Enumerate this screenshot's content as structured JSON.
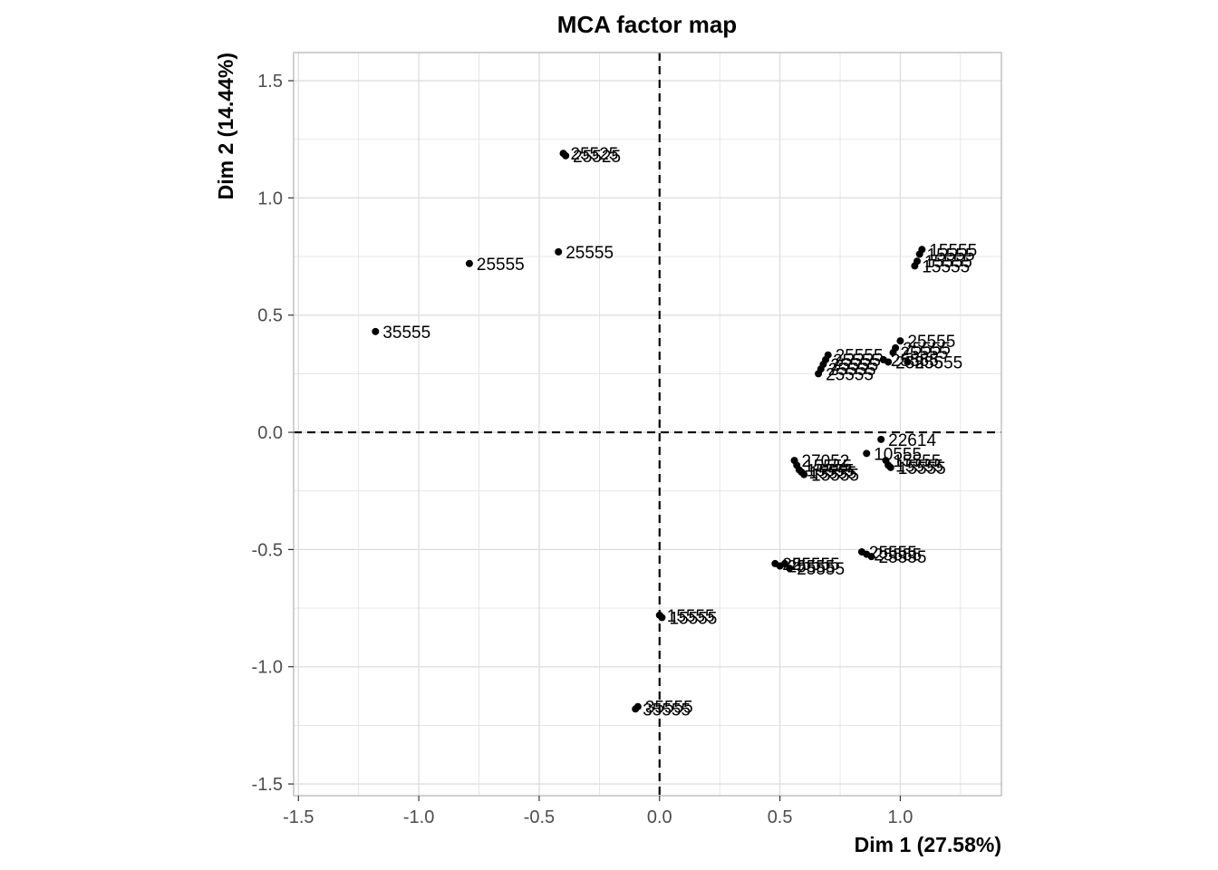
{
  "chart_data": {
    "type": "scatter",
    "title": "MCA factor map",
    "xlabel": "Dim 1 (27.58%)",
    "ylabel": "Dim 2 (14.44%)",
    "xlim": [
      -1.52,
      1.42
    ],
    "ylim": [
      -1.55,
      1.62
    ],
    "x_ticks": [
      -1.5,
      -1.0,
      -0.5,
      0.0,
      0.5,
      1.0
    ],
    "x_tick_labels": [
      "-1.5",
      "-1.0",
      "-0.5",
      "0.0",
      "0.5",
      "1.0"
    ],
    "y_ticks": [
      -1.5,
      -1.0,
      -0.5,
      0.0,
      0.5,
      1.0,
      1.5
    ],
    "y_tick_labels": [
      "-1.5",
      "-1.0",
      "-0.5",
      "0.0",
      "0.5",
      "1.0",
      "1.5"
    ],
    "grid": true,
    "reference_lines": {
      "x": 0,
      "y": 0,
      "style": "dashed"
    },
    "colors": {
      "points": "#000000",
      "grid": "#dddddd",
      "panel_border": "#bdbdbd",
      "tick_text": "#4d4d4d"
    },
    "points": [
      {
        "x": -1.18,
        "y": 0.43,
        "label": "35555"
      },
      {
        "x": -0.79,
        "y": 0.72,
        "label": "25555"
      },
      {
        "x": -0.42,
        "y": 0.77,
        "label": "25555"
      },
      {
        "x": -0.39,
        "y": 1.18,
        "label": "25525"
      },
      {
        "x": -0.4,
        "y": 1.19,
        "label": "25525"
      },
      {
        "x": -0.09,
        "y": -1.17,
        "label": "35555"
      },
      {
        "x": -0.1,
        "y": -1.18,
        "label": "35555"
      },
      {
        "x": 0.0,
        "y": -0.78,
        "label": "15555"
      },
      {
        "x": 0.01,
        "y": -0.79,
        "label": "15555"
      },
      {
        "x": 0.48,
        "y": -0.56,
        "label": "25555"
      },
      {
        "x": 0.5,
        "y": -0.57,
        "label": "25555"
      },
      {
        "x": 0.52,
        "y": -0.56,
        "label": "25555"
      },
      {
        "x": 0.54,
        "y": -0.58,
        "label": "25555"
      },
      {
        "x": 0.56,
        "y": -0.12,
        "label": "27052"
      },
      {
        "x": 0.57,
        "y": -0.14,
        "label": "15555"
      },
      {
        "x": 0.58,
        "y": -0.16,
        "label": "15555"
      },
      {
        "x": 0.59,
        "y": -0.17,
        "label": "15555"
      },
      {
        "x": 0.6,
        "y": -0.18,
        "label": "15555"
      },
      {
        "x": 0.66,
        "y": 0.25,
        "label": "25555"
      },
      {
        "x": 0.67,
        "y": 0.27,
        "label": "25555"
      },
      {
        "x": 0.68,
        "y": 0.29,
        "label": "25555"
      },
      {
        "x": 0.69,
        "y": 0.31,
        "label": "25555"
      },
      {
        "x": 0.7,
        "y": 0.33,
        "label": "25555"
      },
      {
        "x": 0.84,
        "y": -0.51,
        "label": "25555"
      },
      {
        "x": 0.86,
        "y": -0.52,
        "label": "25555"
      },
      {
        "x": 0.88,
        "y": -0.53,
        "label": "25555"
      },
      {
        "x": 0.86,
        "y": -0.09,
        "label": "10555"
      },
      {
        "x": 0.92,
        "y": -0.03,
        "label": "22614"
      },
      {
        "x": 0.94,
        "y": -0.12,
        "label": "15555"
      },
      {
        "x": 0.95,
        "y": -0.14,
        "label": "15555"
      },
      {
        "x": 0.96,
        "y": -0.15,
        "label": "15555"
      },
      {
        "x": 0.93,
        "y": 0.31,
        "label": "25555"
      },
      {
        "x": 0.95,
        "y": 0.3,
        "label": "25555"
      },
      {
        "x": 0.97,
        "y": 0.34,
        "label": "25555"
      },
      {
        "x": 0.98,
        "y": 0.36,
        "label": "25555"
      },
      {
        "x": 1.0,
        "y": 0.39,
        "label": "25555"
      },
      {
        "x": 1.03,
        "y": 0.3,
        "label": "25555"
      },
      {
        "x": 1.06,
        "y": 0.71,
        "label": "15555"
      },
      {
        "x": 1.07,
        "y": 0.73,
        "label": "15555"
      },
      {
        "x": 1.08,
        "y": 0.76,
        "label": "15555"
      },
      {
        "x": 1.09,
        "y": 0.78,
        "label": "15555"
      }
    ]
  }
}
